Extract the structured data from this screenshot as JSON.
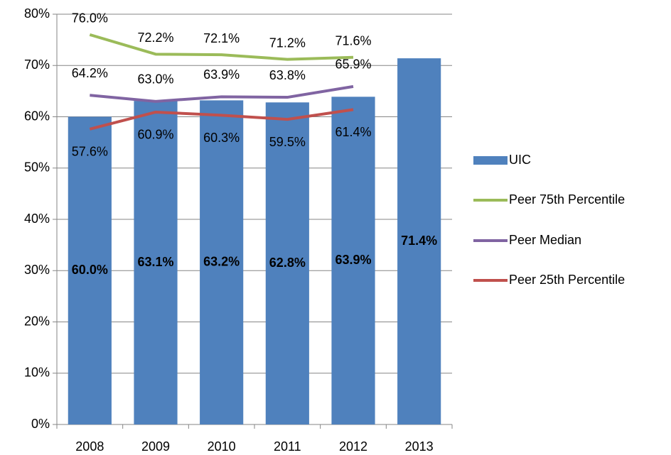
{
  "chart_data": {
    "type": "bar",
    "categories": [
      "2008",
      "2009",
      "2010",
      "2011",
      "2012",
      "2013"
    ],
    "series": [
      {
        "name": "UIC",
        "type": "bar",
        "color": "#4f81bd",
        "values": [
          60.0,
          63.1,
          63.2,
          62.8,
          63.9,
          71.4
        ],
        "value_labels": [
          "60.0%",
          "63.1%",
          "63.2%",
          "62.8%",
          "63.9%",
          "71.4%"
        ]
      },
      {
        "name": "Peer 75th Percentile",
        "type": "line",
        "color": "#9bbb59",
        "values": [
          76.0,
          72.2,
          72.1,
          71.2,
          71.6,
          null
        ],
        "value_labels": [
          "76.0%",
          "72.2%",
          "72.1%",
          "71.2%",
          "71.6%",
          null
        ]
      },
      {
        "name": "Peer Median",
        "type": "line",
        "color": "#8064a2",
        "values": [
          64.2,
          63.0,
          63.9,
          63.8,
          65.9,
          null
        ],
        "value_labels": [
          "64.2%",
          "63.0%",
          "63.9%",
          "63.8%",
          "65.9%",
          null
        ]
      },
      {
        "name": "Peer 25th Percentile",
        "type": "line",
        "color": "#c0504d",
        "values": [
          57.6,
          60.9,
          60.3,
          59.5,
          61.4,
          null
        ],
        "value_labels": [
          "57.6%",
          "60.9%",
          "60.3%",
          "59.5%",
          "61.4%",
          null
        ]
      }
    ],
    "ylim": [
      0,
      80
    ],
    "yticks": [
      {
        "value": 0,
        "label": "0%"
      },
      {
        "value": 10,
        "label": "10%"
      },
      {
        "value": 20,
        "label": "20%"
      },
      {
        "value": 30,
        "label": "30%"
      },
      {
        "value": 40,
        "label": "40%"
      },
      {
        "value": 50,
        "label": "50%"
      },
      {
        "value": 60,
        "label": "60%"
      },
      {
        "value": 70,
        "label": "70%"
      },
      {
        "value": 80,
        "label": "80%"
      }
    ],
    "grid": true
  }
}
